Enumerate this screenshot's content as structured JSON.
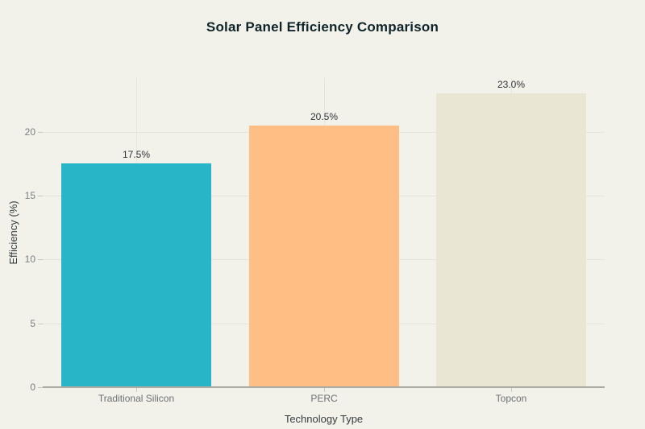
{
  "chart_data": {
    "type": "bar",
    "title": "Solar Panel Efficiency Comparison",
    "xlabel": "Technology Type",
    "ylabel": "Efficiency (%)",
    "categories": [
      "Traditional Silicon",
      "PERC",
      "Topcon"
    ],
    "values": [
      17.5,
      20.5,
      23.0
    ],
    "value_labels": [
      "17.5%",
      "20.5%",
      "23.0%"
    ],
    "bar_colors": [
      "#29b5c8",
      "#ffbe83",
      "#e9e7d3"
    ],
    "yticks": [
      0,
      5,
      10,
      15,
      20
    ],
    "ylim": [
      0,
      24.2
    ],
    "grid": true,
    "legend": "none",
    "background_color": "#f2f1ea",
    "gridline_color": "#e5e4dc",
    "baseline_color": "#adaca4",
    "title_color": "#0e2429"
  }
}
